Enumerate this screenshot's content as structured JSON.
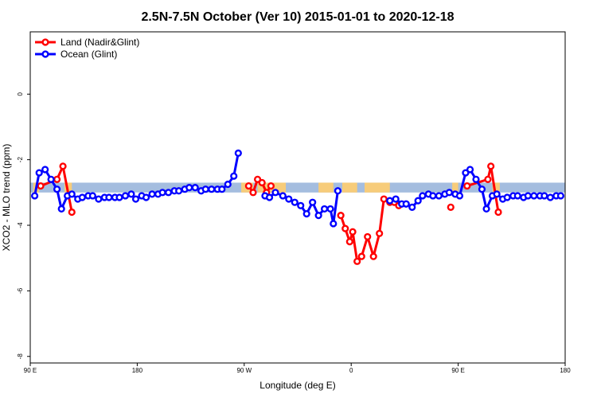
{
  "chart_data": {
    "type": "line",
    "title": "2.5N-7.5N October (Ver 10)   2015-01-01 to 2020-12-18",
    "xlabel": "Longitude (deg E)",
    "ylabel": "XCO2 - MLO trend (ppm)",
    "xlim": [
      90,
      450
    ],
    "ylim": [
      -8.2,
      1.9
    ],
    "x_ticks": [
      {
        "value": 90,
        "label": "90 E"
      },
      {
        "value": 162,
        "label": "180"
      },
      {
        "value": 234,
        "label": "90 W"
      },
      {
        "value": 306,
        "label": "0"
      },
      {
        "value": 378,
        "label": "90 E"
      },
      {
        "value": 450,
        "label": "180"
      }
    ],
    "y_ticks": [
      {
        "value": 0,
        "label": "0"
      },
      {
        "value": -2,
        "label": "-2"
      },
      {
        "value": -4,
        "label": "-4"
      },
      {
        "value": -6,
        "label": "-6"
      },
      {
        "value": -8,
        "label": "-8"
      }
    ],
    "legend": {
      "position": "top-left"
    },
    "colors": {
      "land": "#ff0000",
      "ocean": "#0000ff",
      "band_blue": "#a4bddf",
      "band_orange": "#f7cc7a"
    },
    "band": {
      "ymin": -3.0,
      "ymax": -2.7
    },
    "orange_regions": [
      [
        92,
        96
      ],
      [
        113,
        118
      ],
      [
        232,
        240
      ],
      [
        243,
        262
      ],
      [
        284,
        294
      ],
      [
        300,
        310
      ],
      [
        315,
        332
      ],
      [
        374,
        378
      ],
      [
        401,
        406
      ]
    ],
    "series": [
      {
        "name": "Land (Nadir&Glint)",
        "color": "#ff0000",
        "segments": [
          [
            [
              97,
              -2.8
            ],
            [
              108,
              -2.6
            ],
            [
              112,
              -2.2
            ],
            [
              118,
              -3.6
            ]
          ],
          [
            [
              237,
              -2.8
            ],
            [
              240,
              -3.0
            ],
            [
              243,
              -2.6
            ],
            [
              246,
              -2.7
            ],
            [
              249,
              -3.0
            ],
            [
              252,
              -2.8
            ]
          ],
          [
            [
              299,
              -3.7
            ],
            [
              302,
              -4.1
            ],
            [
              305,
              -4.5
            ],
            [
              307,
              -4.2
            ],
            [
              310,
              -5.1
            ],
            [
              313,
              -4.95
            ],
            [
              317,
              -4.35
            ],
            [
              321,
              -4.95
            ],
            [
              325,
              -4.25
            ],
            [
              328,
              -3.2
            ],
            [
              332,
              -3.3
            ],
            [
              335,
              -3.3
            ],
            [
              338,
              -3.4
            ]
          ],
          [
            [
              373,
              -3.45
            ]
          ],
          [
            [
              384,
              -2.8
            ],
            [
              398,
              -2.6
            ],
            [
              400,
              -2.2
            ],
            [
              405,
              -3.6
            ]
          ]
        ]
      },
      {
        "name": "Ocean (Glint)",
        "color": "#0000ff",
        "segments": [
          [
            [
              93,
              -3.1
            ],
            [
              96,
              -2.4
            ],
            [
              100,
              -2.3
            ],
            [
              104,
              -2.6
            ],
            [
              108,
              -2.9
            ],
            [
              111,
              -3.5
            ],
            [
              115,
              -3.1
            ],
            [
              118,
              -3.05
            ],
            [
              122,
              -3.2
            ],
            [
              125,
              -3.15
            ],
            [
              129,
              -3.1
            ],
            [
              132,
              -3.1
            ],
            [
              136,
              -3.2
            ],
            [
              140,
              -3.15
            ],
            [
              143,
              -3.15
            ],
            [
              147,
              -3.15
            ],
            [
              150,
              -3.15
            ],
            [
              154,
              -3.1
            ],
            [
              158,
              -3.05
            ],
            [
              161,
              -3.2
            ],
            [
              165,
              -3.1
            ],
            [
              168,
              -3.15
            ],
            [
              172,
              -3.05
            ],
            [
              176,
              -3.05
            ],
            [
              179,
              -3.0
            ],
            [
              183,
              -3.0
            ],
            [
              187,
              -2.95
            ],
            [
              190,
              -2.95
            ],
            [
              194,
              -2.9
            ],
            [
              197,
              -2.85
            ],
            [
              201,
              -2.85
            ],
            [
              205,
              -2.95
            ],
            [
              208,
              -2.9
            ],
            [
              212,
              -2.9
            ],
            [
              216,
              -2.9
            ],
            [
              219,
              -2.9
            ],
            [
              223,
              -2.75
            ],
            [
              227,
              -2.5
            ],
            [
              230,
              -1.8
            ]
          ],
          [
            [
              248,
              -3.1
            ],
            [
              251,
              -3.15
            ],
            [
              255,
              -3.0
            ],
            [
              260,
              -3.1
            ],
            [
              264,
              -3.2
            ],
            [
              268,
              -3.3
            ],
            [
              272,
              -3.4
            ],
            [
              276,
              -3.65
            ],
            [
              280,
              -3.3
            ],
            [
              284,
              -3.7
            ],
            [
              288,
              -3.5
            ],
            [
              292,
              -3.5
            ],
            [
              294,
              -3.95
            ],
            [
              297,
              -2.95
            ]
          ],
          [
            [
              332,
              -3.25
            ],
            [
              336,
              -3.2
            ],
            [
              340,
              -3.35
            ],
            [
              343,
              -3.35
            ],
            [
              347,
              -3.45
            ],
            [
              351,
              -3.25
            ],
            [
              354,
              -3.1
            ],
            [
              358,
              -3.05
            ],
            [
              361,
              -3.1
            ],
            [
              365,
              -3.1
            ],
            [
              369,
              -3.05
            ],
            [
              372,
              -3.0
            ],
            [
              376,
              -3.05
            ],
            [
              379,
              -3.1
            ],
            [
              383,
              -2.4
            ],
            [
              386,
              -2.3
            ],
            [
              390,
              -2.6
            ],
            [
              394,
              -2.9
            ],
            [
              397,
              -3.5
            ],
            [
              401,
              -3.1
            ],
            [
              404,
              -3.05
            ],
            [
              408,
              -3.2
            ],
            [
              411,
              -3.15
            ],
            [
              415,
              -3.1
            ],
            [
              418,
              -3.1
            ],
            [
              422,
              -3.15
            ],
            [
              425,
              -3.1
            ],
            [
              429,
              -3.1
            ],
            [
              433,
              -3.1
            ],
            [
              436,
              -3.1
            ],
            [
              440,
              -3.15
            ],
            [
              444,
              -3.1
            ],
            [
              447,
              -3.1
            ]
          ]
        ]
      }
    ]
  }
}
